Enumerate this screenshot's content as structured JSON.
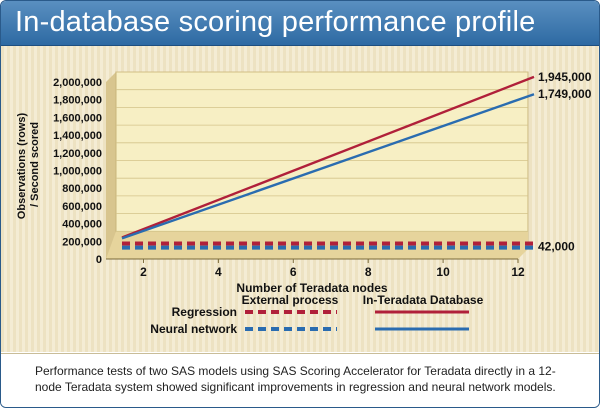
{
  "header": {
    "title": "In-database scoring performance profile"
  },
  "caption": {
    "text": "Performance tests of two SAS models using SAS Scoring Accelerator for Teradata directly in a 12-node Teradata system showed significant improvements in regression and neural network models."
  },
  "chart_data": {
    "type": "line",
    "title": "In-database scoring performance profile",
    "xlabel": "Number of Teradata nodes",
    "ylabel": "Observations (rows) / Second scored",
    "ylabel_lines": [
      "Observations (rows)",
      "/ Second scored"
    ],
    "xlim": [
      1,
      12
    ],
    "ylim": [
      0,
      2000000
    ],
    "xticks": [
      2,
      4,
      6,
      8,
      10,
      12
    ],
    "yticks": [
      0,
      200000,
      400000,
      600000,
      800000,
      1000000,
      1200000,
      1400000,
      1600000,
      1800000,
      2000000
    ],
    "ytick_labels": [
      "0",
      "200,000",
      "400,000",
      "600,000",
      "800,000",
      "1,000,000",
      "1,200,000",
      "1,400,000",
      "1,600,000",
      "1,800,000",
      "2,000,000"
    ],
    "series": [
      {
        "name": "Regression",
        "method": "In-Teradata Database",
        "style": "solid",
        "color": "#b0203a",
        "x": [
          1,
          12
        ],
        "values": [
          130000,
          1945000
        ]
      },
      {
        "name": "Neural network",
        "method": "In-Teradata Database",
        "style": "solid",
        "color": "#2a6cb0",
        "x": [
          1,
          12
        ],
        "values": [
          120000,
          1749000
        ]
      },
      {
        "name": "Regression",
        "method": "External process",
        "style": "dashed",
        "color": "#b0203a",
        "x": [
          1,
          12
        ],
        "values": [
          42000,
          42000
        ]
      },
      {
        "name": "Neural network",
        "method": "External process",
        "style": "dashed",
        "color": "#2a6cb0",
        "x": [
          1,
          12
        ],
        "values": [
          42000,
          42000
        ]
      }
    ],
    "annotations": [
      {
        "text": "1,945,000",
        "value": 1945000
      },
      {
        "text": "1,749,000",
        "value": 1749000
      },
      {
        "text": "42,000",
        "value": 42000
      }
    ],
    "legend": {
      "col_headers": [
        "External process",
        "In-Teradata Database"
      ],
      "rows": [
        "Regression",
        "Neural network"
      ],
      "colors": [
        "#b0203a",
        "#2a6cb0"
      ]
    }
  }
}
